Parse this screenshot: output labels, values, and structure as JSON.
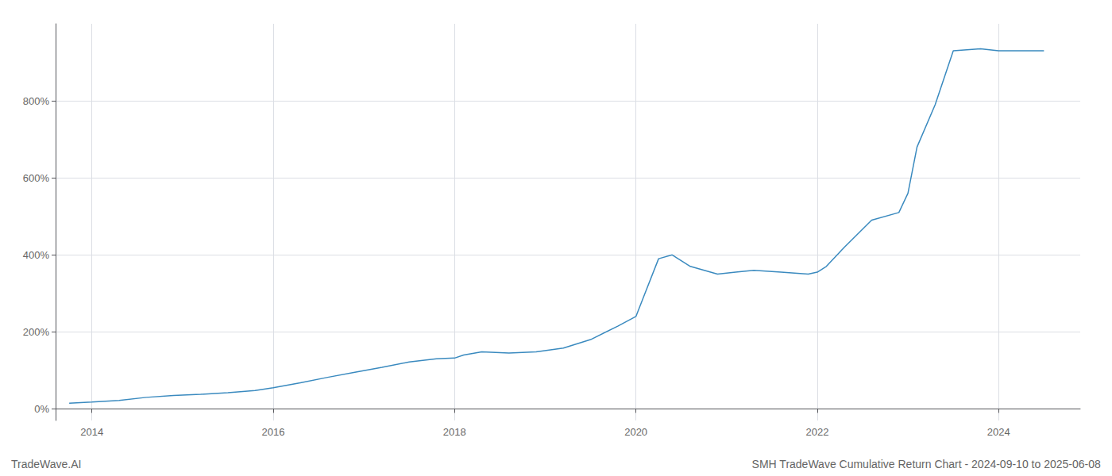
{
  "chart_data": {
    "type": "line",
    "annotations": [
      "TradeWave.AI",
      "SMH TradeWave Cumulative Return Chart - 2024-09-10 to 2025-06-08"
    ],
    "x": [
      2013.75,
      2014.0,
      2014.3,
      2014.6,
      2014.9,
      2015.2,
      2015.5,
      2015.8,
      2016.0,
      2016.3,
      2016.6,
      2016.9,
      2017.2,
      2017.5,
      2017.8,
      2018.0,
      2018.1,
      2018.3,
      2018.6,
      2018.9,
      2019.2,
      2019.5,
      2019.8,
      2020.0,
      2020.1,
      2020.25,
      2020.4,
      2020.6,
      2020.9,
      2021.1,
      2021.3,
      2021.6,
      2021.9,
      2022.0,
      2022.1,
      2022.3,
      2022.6,
      2022.9,
      2023.0,
      2023.1,
      2023.3,
      2023.5,
      2023.8,
      2024.0,
      2024.3,
      2024.5
    ],
    "values": [
      15,
      18,
      22,
      30,
      35,
      38,
      42,
      48,
      55,
      68,
      82,
      95,
      108,
      122,
      130,
      132,
      140,
      148,
      145,
      148,
      158,
      180,
      215,
      240,
      300,
      390,
      400,
      370,
      350,
      355,
      360,
      355,
      350,
      355,
      370,
      420,
      490,
      510,
      560,
      680,
      790,
      930,
      935,
      930,
      930,
      930
    ],
    "color": "#3a8abf",
    "xlim": [
      2013.6,
      2024.9
    ],
    "xticks": [
      2014,
      2016,
      2018,
      2020,
      2022,
      2024
    ],
    "ylim": [
      -30,
      1000
    ],
    "yticks": [
      {
        "value": 0,
        "label": "0%"
      },
      {
        "value": 200,
        "label": "200%"
      },
      {
        "value": 400,
        "label": "400%"
      },
      {
        "value": 600,
        "label": "600%"
      },
      {
        "value": 800,
        "label": "800%"
      }
    ],
    "grid": true
  }
}
